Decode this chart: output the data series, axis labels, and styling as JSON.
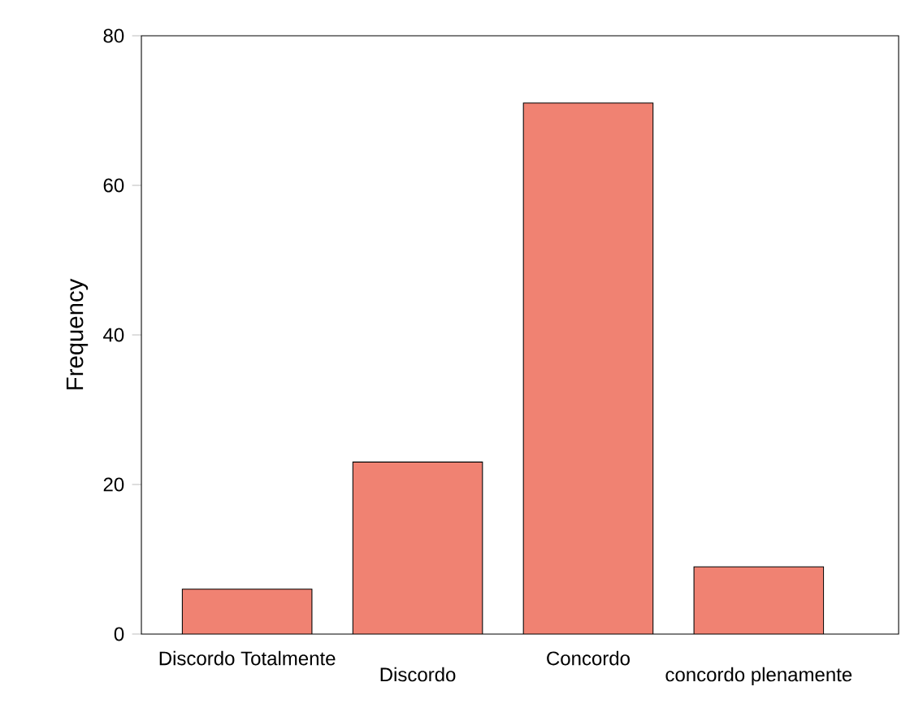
{
  "chart_data": {
    "type": "bar",
    "ylabel": "Frequency",
    "categories": [
      "Discordo Totalmente",
      "Discordo",
      "Concordo",
      "concordo plenamente"
    ],
    "values": [
      6,
      23,
      71,
      9
    ],
    "color": "#f08272",
    "ylim": [
      0,
      80
    ],
    "yticks": [
      0,
      20,
      40,
      60,
      80
    ],
    "grid": false
  }
}
